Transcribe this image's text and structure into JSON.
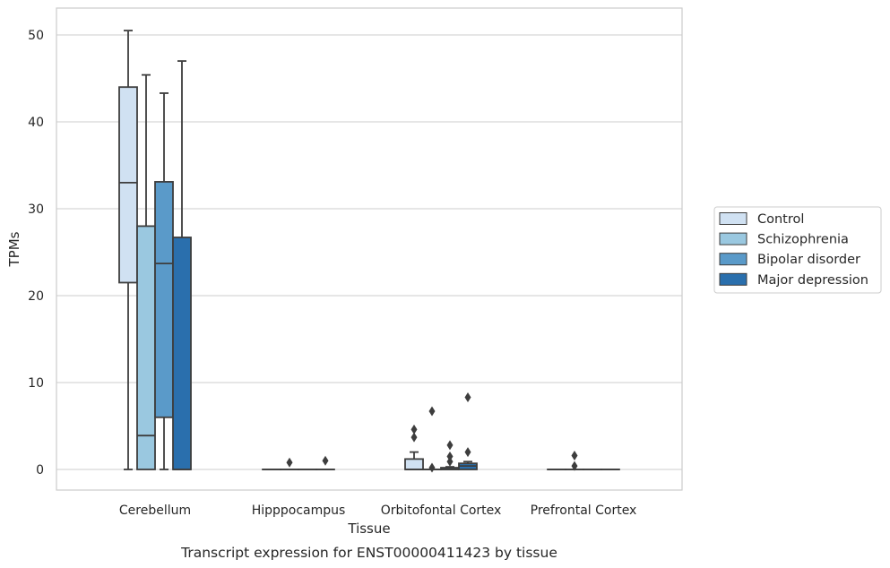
{
  "chart_data": {
    "type": "box",
    "xlabel": "Tissue",
    "ylabel": "TPMs",
    "caption": "Transcript expression for ENST00000411423 by tissue",
    "ylim": [
      -2.4,
      53
    ],
    "yticks": [
      0,
      10,
      20,
      30,
      40,
      50
    ],
    "grid": "horizontal",
    "legend_position": "right",
    "categories": [
      "Cerebellum",
      "Hipppocampus",
      "Orbitofontal Cortex",
      "Prefrontal Cortex"
    ],
    "series": [
      {
        "name": "Control",
        "color": "#d0e1f2",
        "boxes": [
          {
            "whislo": 0,
            "q1": 21.5,
            "med": 33.0,
            "q3": 44.0,
            "whishi": 50.5,
            "fliers": []
          },
          {
            "whislo": 0,
            "q1": 0,
            "med": 0,
            "q3": 0,
            "whishi": 0,
            "fliers": []
          },
          {
            "whislo": 0,
            "q1": 0,
            "med": 0,
            "q3": 1.2,
            "whishi": 2.0,
            "fliers": [
              3.7,
              4.6
            ]
          },
          {
            "whislo": 0,
            "q1": 0,
            "med": 0,
            "q3": 0,
            "whishi": 0,
            "fliers": []
          }
        ]
      },
      {
        "name": "Schizophrenia",
        "color": "#9ac8e0",
        "boxes": [
          {
            "whislo": 0,
            "q1": 0,
            "med": 3.9,
            "q3": 28.0,
            "whishi": 45.4,
            "fliers": []
          },
          {
            "whislo": 0,
            "q1": 0,
            "med": 0,
            "q3": 0,
            "whishi": 0,
            "fliers": [
              0.8
            ]
          },
          {
            "whislo": 0,
            "q1": 0,
            "med": 0,
            "q3": 0,
            "whishi": 0,
            "fliers": [
              0.2,
              6.7
            ]
          },
          {
            "whislo": 0,
            "q1": 0,
            "med": 0,
            "q3": 0,
            "whishi": 0,
            "fliers": [
              0.4,
              1.6
            ]
          }
        ]
      },
      {
        "name": "Bipolar disorder",
        "color": "#5a9ac9",
        "boxes": [
          {
            "whislo": 0,
            "q1": 6.0,
            "med": 23.7,
            "q3": 33.1,
            "whishi": 43.3,
            "fliers": []
          },
          {
            "whislo": 0,
            "q1": 0,
            "med": 0,
            "q3": 0,
            "whishi": 0,
            "fliers": []
          },
          {
            "whislo": 0,
            "q1": 0,
            "med": 0,
            "q3": 0.2,
            "whishi": 0.3,
            "fliers": [
              0.9,
              1.5,
              2.8
            ]
          },
          {
            "whislo": 0,
            "q1": 0,
            "med": 0,
            "q3": 0,
            "whishi": 0,
            "fliers": []
          }
        ]
      },
      {
        "name": "Major depression",
        "color": "#2a6fad",
        "boxes": [
          {
            "whislo": 0,
            "q1": 0,
            "med": 0,
            "q3": 26.7,
            "whishi": 47.0,
            "fliers": []
          },
          {
            "whislo": 0,
            "q1": 0,
            "med": 0,
            "q3": 0,
            "whishi": 0,
            "fliers": [
              1.0
            ]
          },
          {
            "whislo": 0,
            "q1": 0,
            "med": 0.4,
            "q3": 0.7,
            "whishi": 0.9,
            "fliers": [
              2.0,
              8.3
            ]
          },
          {
            "whislo": 0,
            "q1": 0,
            "med": 0,
            "q3": 0,
            "whishi": 0,
            "fliers": []
          }
        ]
      }
    ]
  }
}
